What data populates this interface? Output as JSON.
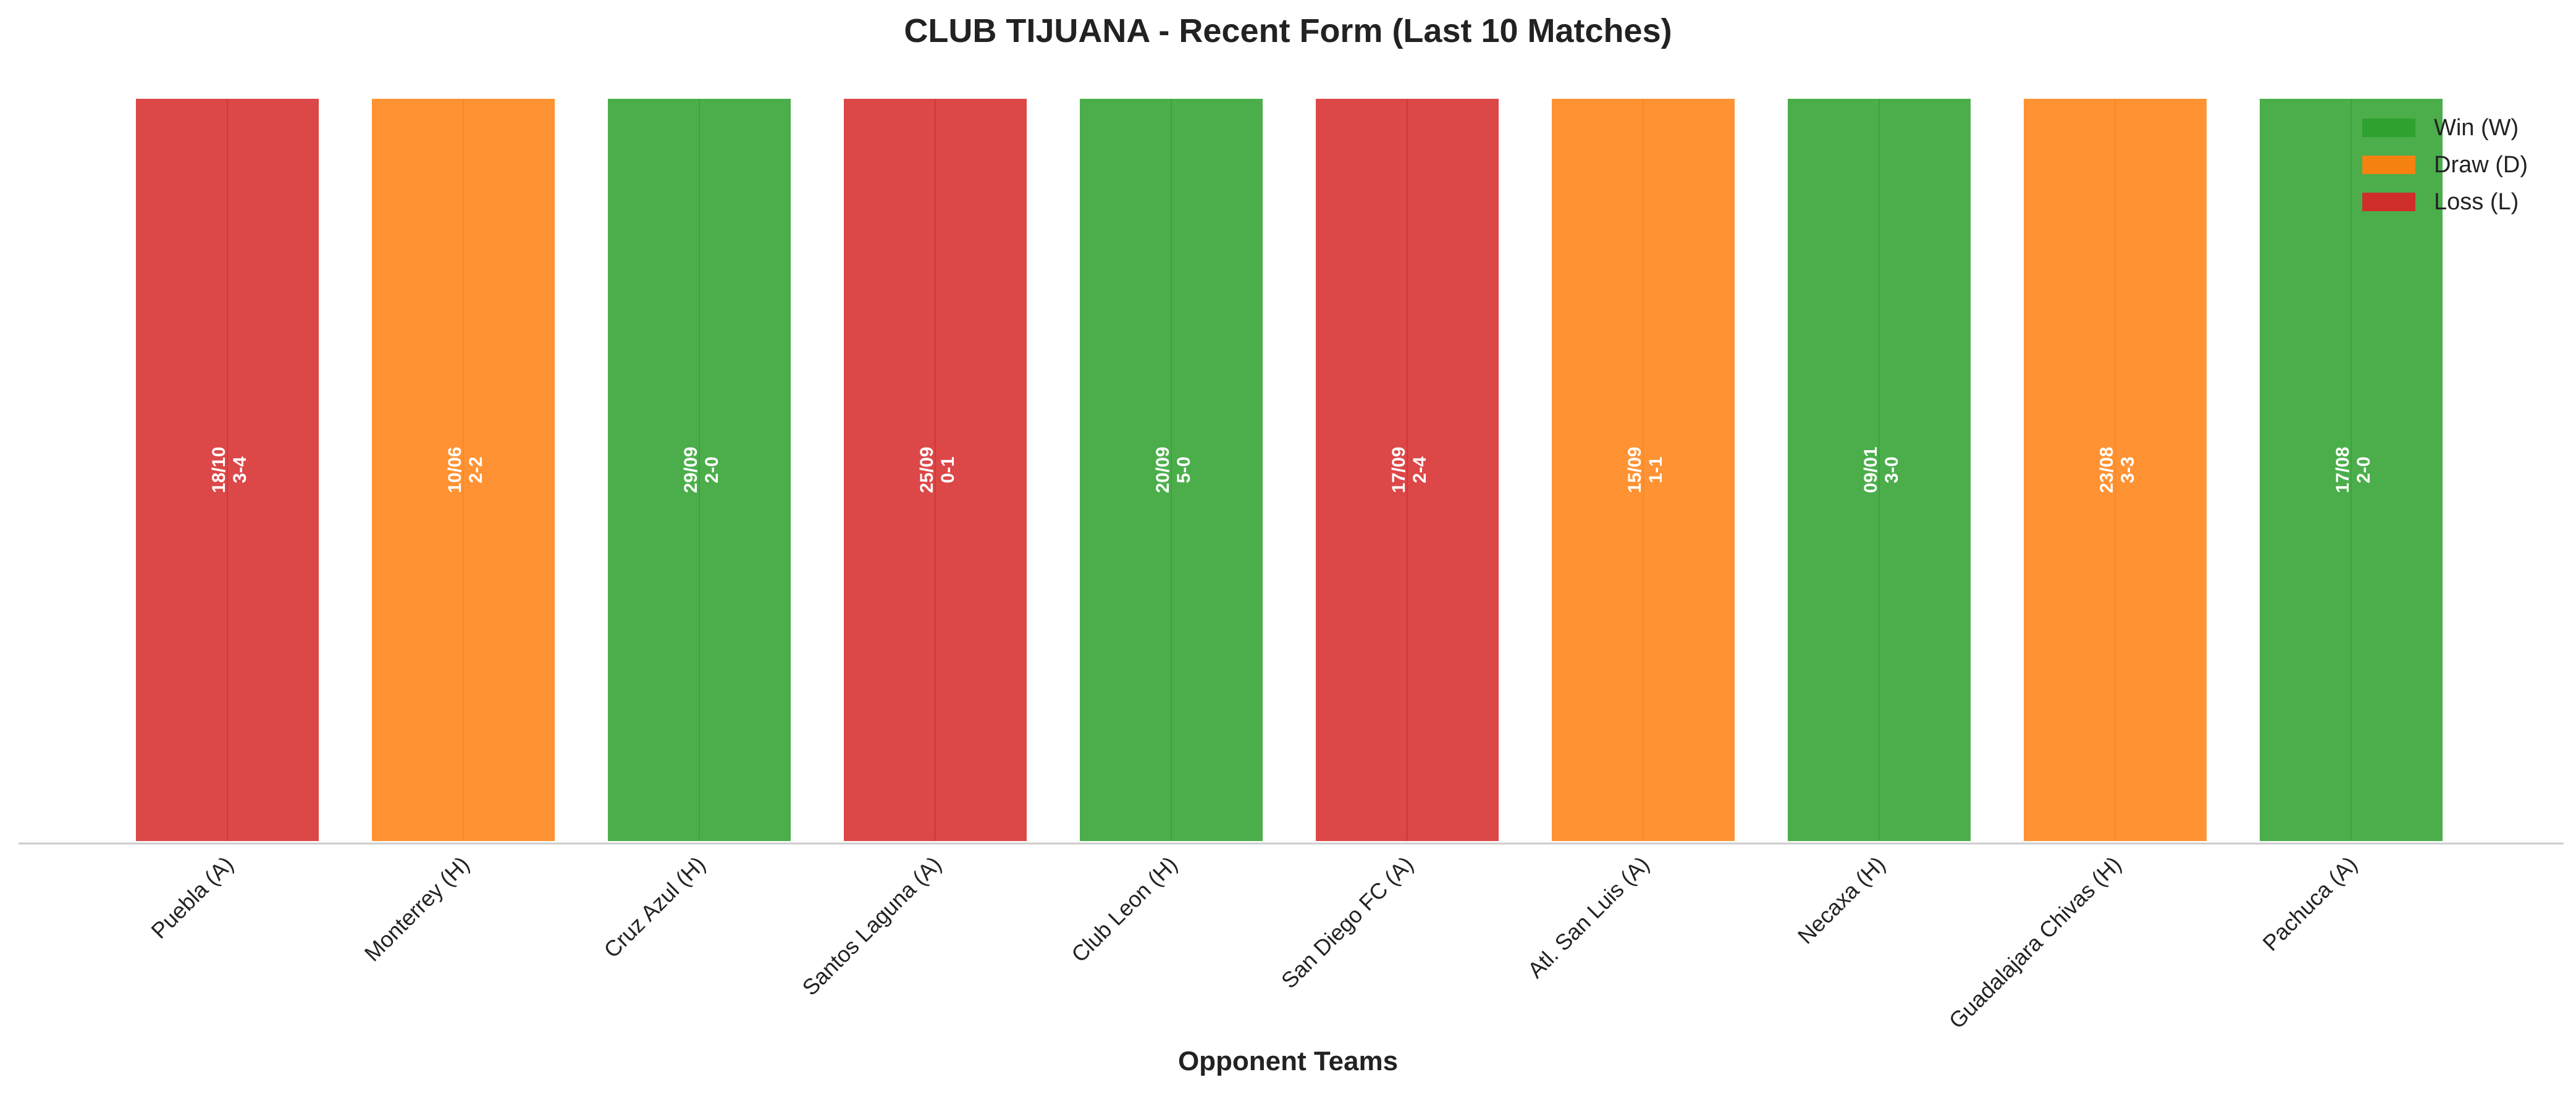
{
  "chart_data": {
    "type": "bar",
    "title": "CLUB TIJUANA - Recent Form (Last 10 Matches)",
    "xlabel": "Opponent Teams",
    "ylabel": "",
    "grid": false,
    "legend_position": "top-right",
    "categories": [
      "Puebla (A)",
      "Monterrey (H)",
      "Cruz Azul (H)",
      "Santos Laguna (A)",
      "Club Leon (H)",
      "San Diego FC (A)",
      "Atl. San Luis (A)",
      "Necaxa (H)",
      "Guadalajara Chivas (H)",
      "Pachuca (A)"
    ],
    "values": [
      1,
      1,
      1,
      1,
      1,
      1,
      1,
      1,
      1,
      1
    ],
    "results": [
      "L",
      "D",
      "W",
      "L",
      "W",
      "L",
      "D",
      "W",
      "D",
      "W"
    ],
    "dates": [
      "18/10",
      "10/06",
      "29/09",
      "25/09",
      "20/09",
      "17/09",
      "15/09",
      "09/01",
      "23/08",
      "17/08"
    ],
    "scores": [
      "3-4",
      "2-2",
      "2-0",
      "0-1",
      "5-0",
      "2-4",
      "1-1",
      "3-0",
      "3-3",
      "2-0"
    ],
    "legend": [
      {
        "key": "W",
        "label": "Win (W)",
        "color": "#2ca02c"
      },
      {
        "key": "D",
        "label": "Draw (D)",
        "color": "#ff7f0e"
      },
      {
        "key": "L",
        "label": "Loss (L)",
        "color": "#d62728"
      }
    ]
  }
}
